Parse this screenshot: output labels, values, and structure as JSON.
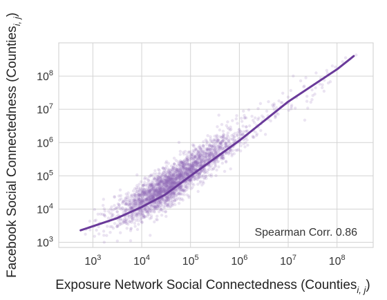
{
  "chart_data": {
    "type": "scatter",
    "title": "",
    "xlabel": {
      "prefix": "Exposure Network Social Connectedness (Counties",
      "sub": "i, j",
      "suffix": ")"
    },
    "ylabel": {
      "prefix": "Facebook Social Connectedness (Counties",
      "sub": "i, j",
      "suffix": ")"
    },
    "xscale": "log",
    "yscale": "log",
    "xlim": [
      200,
      550000000
    ],
    "ylim": [
      700,
      1000000000
    ],
    "grid": true,
    "x_ticks": [
      {
        "value": 1000,
        "base": "10",
        "exp": "3"
      },
      {
        "value": 10000,
        "base": "10",
        "exp": "4"
      },
      {
        "value": 100000,
        "base": "10",
        "exp": "5"
      },
      {
        "value": 1000000,
        "base": "10",
        "exp": "6"
      },
      {
        "value": 10000000,
        "base": "10",
        "exp": "7"
      },
      {
        "value": 100000000,
        "base": "10",
        "exp": "8"
      }
    ],
    "y_ticks": [
      {
        "value": 1000,
        "base": "10",
        "exp": "3"
      },
      {
        "value": 10000,
        "base": "10",
        "exp": "4"
      },
      {
        "value": 100000,
        "base": "10",
        "exp": "5"
      },
      {
        "value": 1000000,
        "base": "10",
        "exp": "6"
      },
      {
        "value": 10000000,
        "base": "10",
        "exp": "7"
      },
      {
        "value": 100000000,
        "base": "10",
        "exp": "8"
      }
    ],
    "annotation": "Spearman Corr. 0.86",
    "colors": {
      "scatter": "#8e6bb8",
      "fit_line": "#6a3a9a",
      "grid": "#d3d3d3"
    },
    "series": [
      {
        "kind": "points",
        "description_of_density": "dense point cloud around the fitted trend",
        "density_profile_log10": [
          {
            "x": 3.3,
            "y": 3.8,
            "n": 40
          },
          {
            "x": 3.7,
            "y": 4.0,
            "n": 120
          },
          {
            "x": 4.0,
            "y": 4.2,
            "n": 300
          },
          {
            "x": 4.3,
            "y": 4.45,
            "n": 480
          },
          {
            "x": 4.6,
            "y": 4.75,
            "n": 520
          },
          {
            "x": 4.9,
            "y": 5.05,
            "n": 440
          },
          {
            "x": 5.2,
            "y": 5.4,
            "n": 300
          },
          {
            "x": 5.5,
            "y": 5.75,
            "n": 170
          },
          {
            "x": 5.8,
            "y": 6.05,
            "n": 90
          },
          {
            "x": 6.2,
            "y": 6.45,
            "n": 50
          },
          {
            "x": 6.7,
            "y": 6.95,
            "n": 30
          },
          {
            "x": 7.2,
            "y": 7.4,
            "n": 20
          },
          {
            "x": 7.7,
            "y": 7.9,
            "n": 12
          },
          {
            "x": 8.1,
            "y": 8.35,
            "n": 6
          }
        ]
      },
      {
        "kind": "fit",
        "points": [
          {
            "x": 560,
            "y": 2300
          },
          {
            "x": 3000,
            "y": 5200
          },
          {
            "x": 10000,
            "y": 11500
          },
          {
            "x": 30000,
            "y": 27000
          },
          {
            "x": 100000,
            "y": 100000
          },
          {
            "x": 300000,
            "y": 320000
          },
          {
            "x": 1000000,
            "y": 1150000
          },
          {
            "x": 10000000,
            "y": 17000000
          },
          {
            "x": 100000000,
            "y": 160000000
          },
          {
            "x": 220000000,
            "y": 400000000
          }
        ]
      }
    ]
  }
}
